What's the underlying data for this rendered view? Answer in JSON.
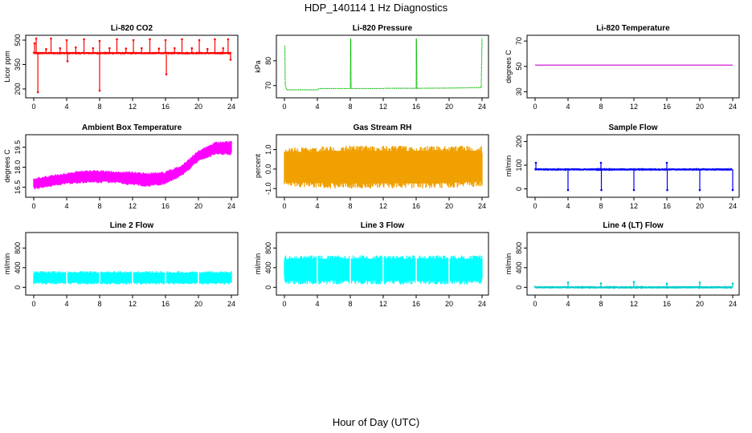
{
  "figure": {
    "title": "HDP_140114  1 Hz Diagnostics",
    "xlabel": "Hour of Day (UTC)"
  },
  "chart_data": [
    {
      "type": "line",
      "title": "Li-820 CO2",
      "ylabel": "Licor ppm",
      "color": "#ff0000",
      "x_ticks": [
        "0",
        "4",
        "8",
        "12",
        "16",
        "20",
        "24"
      ],
      "y_ticks": [
        {
          "v": 200,
          "label": "200"
        },
        {
          "v": 350,
          "label": "350"
        },
        {
          "v": 500,
          "label": "500"
        }
      ],
      "xlim": [
        0,
        24
      ],
      "ylim": [
        175,
        510
      ],
      "base": 420,
      "spikes": [
        [
          0.1,
          480
        ],
        [
          0.3,
          510
        ],
        [
          0.5,
          180
        ],
        [
          1.5,
          445
        ],
        [
          2.1,
          510
        ],
        [
          3.2,
          450
        ],
        [
          4.0,
          500
        ],
        [
          4.1,
          370
        ],
        [
          5.1,
          455
        ],
        [
          6.1,
          505
        ],
        [
          7.2,
          450
        ],
        [
          8.0,
          495
        ],
        [
          8.0,
          190
        ],
        [
          9.2,
          450
        ],
        [
          10.1,
          505
        ],
        [
          11.2,
          448
        ],
        [
          12.1,
          500
        ],
        [
          13.1,
          450
        ],
        [
          14.1,
          505
        ],
        [
          15.2,
          448
        ],
        [
          16.0,
          500
        ],
        [
          16.1,
          290
        ],
        [
          17.1,
          450
        ],
        [
          18.0,
          505
        ],
        [
          19.2,
          450
        ],
        [
          20.1,
          500
        ],
        [
          21.1,
          445
        ],
        [
          22.0,
          505
        ],
        [
          23.0,
          450
        ],
        [
          23.6,
          505
        ],
        [
          23.9,
          380
        ]
      ]
    },
    {
      "type": "line",
      "title": "Li-820 Pressure",
      "ylabel": "kPa",
      "color": "#00bb00",
      "x_ticks": [
        "0",
        "4",
        "8",
        "12",
        "16",
        "20",
        "24"
      ],
      "y_ticks": [
        {
          "v": 70,
          "label": "70"
        },
        {
          "v": 80,
          "label": "80"
        }
      ],
      "xlim": [
        0,
        24
      ],
      "ylim": [
        67,
        89
      ],
      "points": [
        [
          0.05,
          86
        ],
        [
          0.1,
          70
        ],
        [
          0.3,
          68.3
        ],
        [
          4.0,
          68.3
        ],
        [
          4.2,
          68.8
        ],
        [
          8.0,
          68.8
        ],
        [
          8.05,
          89
        ],
        [
          8.1,
          68.8
        ],
        [
          12.0,
          68.8
        ],
        [
          12.2,
          68.9
        ],
        [
          16.0,
          68.9
        ],
        [
          16.02,
          89
        ],
        [
          16.1,
          68.9
        ],
        [
          20.0,
          69.0
        ],
        [
          23.9,
          69.2
        ],
        [
          24.0,
          89
        ]
      ]
    },
    {
      "type": "line",
      "title": "Li-820 Temperature",
      "ylabel": "degrees C",
      "color": "#cc00cc",
      "x_ticks": [
        "0",
        "4",
        "8",
        "12",
        "16",
        "20",
        "24"
      ],
      "y_ticks": [
        {
          "v": 30,
          "label": "30"
        },
        {
          "v": 50,
          "label": "50"
        },
        {
          "v": 70,
          "label": "70"
        }
      ],
      "xlim": [
        0,
        24
      ],
      "ylim": [
        29,
        72
      ],
      "points": [
        [
          0,
          51
        ],
        [
          24,
          51
        ]
      ]
    },
    {
      "type": "area",
      "title": "Ambient Box Temperature",
      "ylabel": "degrees C",
      "color": "#ff00ff",
      "x_ticks": [
        "0",
        "4",
        "8",
        "12",
        "16",
        "20",
        "24"
      ],
      "y_ticks": [
        {
          "v": 16.5,
          "label": "16.5"
        },
        {
          "v": 18.0,
          "label": "18.0"
        },
        {
          "v": 19.5,
          "label": "19.5"
        }
      ],
      "xlim": [
        0,
        24
      ],
      "ylim": [
        16.1,
        20.2
      ],
      "upper": [
        [
          0,
          17.2
        ],
        [
          2,
          17.4
        ],
        [
          4,
          17.6
        ],
        [
          6,
          17.8
        ],
        [
          8,
          17.8
        ],
        [
          10,
          17.7
        ],
        [
          12,
          17.7
        ],
        [
          14,
          17.6
        ],
        [
          16,
          17.7
        ],
        [
          18,
          18.2
        ],
        [
          20,
          19.3
        ],
        [
          22,
          19.9
        ],
        [
          24,
          20.0
        ]
      ],
      "lower": [
        [
          0,
          16.3
        ],
        [
          2,
          16.5
        ],
        [
          4,
          16.7
        ],
        [
          6,
          16.8
        ],
        [
          8,
          16.8
        ],
        [
          10,
          16.8
        ],
        [
          12,
          16.6
        ],
        [
          14,
          16.5
        ],
        [
          16,
          16.7
        ],
        [
          18,
          17.3
        ],
        [
          20,
          18.4
        ],
        [
          22,
          18.9
        ],
        [
          24,
          18.9
        ]
      ]
    },
    {
      "type": "area",
      "title": "Gas Stream RH",
      "ylabel": "percent",
      "color": "#f0a000",
      "x_ticks": [
        "0",
        "4",
        "8",
        "12",
        "16",
        "20",
        "24"
      ],
      "y_ticks": [
        {
          "v": -1.0,
          "label": "-1.0"
        },
        {
          "v": 0.0,
          "label": "0.0"
        },
        {
          "v": 1.0,
          "label": "1.0"
        }
      ],
      "xlim": [
        0,
        24
      ],
      "ylim": [
        -1.2,
        1.6
      ],
      "upper": [
        [
          0,
          1.1
        ],
        [
          6,
          1.2
        ],
        [
          12,
          1.2
        ],
        [
          18,
          1.2
        ],
        [
          24,
          1.2
        ]
      ],
      "lower": [
        [
          0,
          -0.9
        ],
        [
          6,
          -1.0
        ],
        [
          12,
          -1.0
        ],
        [
          18,
          -1.0
        ],
        [
          24,
          -0.9
        ]
      ]
    },
    {
      "type": "line",
      "title": "Sample Flow",
      "ylabel": "ml/min",
      "color": "#0000ff",
      "x_ticks": [
        "0",
        "4",
        "8",
        "12",
        "16",
        "20",
        "24"
      ],
      "y_ticks": [
        {
          "v": 0,
          "label": "0"
        },
        {
          "v": 100,
          "label": "100"
        },
        {
          "v": 200,
          "label": "200"
        }
      ],
      "xlim": [
        0,
        24
      ],
      "ylim": [
        -15,
        215
      ],
      "base": 82,
      "spikes": [
        [
          0.1,
          110
        ],
        [
          4.0,
          -5
        ],
        [
          8.0,
          110
        ],
        [
          8.05,
          -5
        ],
        [
          12.0,
          -5
        ],
        [
          16.0,
          110
        ],
        [
          16.05,
          -5
        ],
        [
          20.0,
          -5
        ],
        [
          24.0,
          -5
        ]
      ]
    },
    {
      "type": "area",
      "title": "Line 2 Flow",
      "ylabel": "ml/min",
      "color": "#00ffff",
      "x_ticks": [
        "0",
        "4",
        "8",
        "12",
        "16",
        "20",
        "24"
      ],
      "y_ticks": [
        {
          "v": 0,
          "label": "0"
        },
        {
          "v": 400,
          "label": "400"
        },
        {
          "v": 800,
          "label": "800"
        }
      ],
      "xlim": [
        0,
        24
      ],
      "ylim": [
        -60,
        1050
      ],
      "upper": [
        [
          0,
          330
        ],
        [
          24,
          330
        ]
      ],
      "lower": [
        [
          0,
          60
        ],
        [
          24,
          60
        ]
      ],
      "gaps": [
        4,
        8,
        12,
        16,
        20
      ]
    },
    {
      "type": "area",
      "title": "Line 3 Flow",
      "ylabel": "ml/min",
      "color": "#00ffff",
      "x_ticks": [
        "0",
        "4",
        "8",
        "12",
        "16",
        "20",
        "24"
      ],
      "y_ticks": [
        {
          "v": 0,
          "label": "0"
        },
        {
          "v": 400,
          "label": "400"
        },
        {
          "v": 800,
          "label": "800"
        }
      ],
      "xlim": [
        0,
        24
      ],
      "ylim": [
        -60,
        1050
      ],
      "upper": [
        [
          0,
          650
        ],
        [
          24,
          650
        ]
      ],
      "lower": [
        [
          0,
          60
        ],
        [
          24,
          60
        ]
      ],
      "gaps": [
        4,
        8,
        12,
        16,
        20
      ]
    },
    {
      "type": "line",
      "title": "Line 4 (LT) Flow",
      "ylabel": "ml/min",
      "color": "#00cccc",
      "x_ticks": [
        "0",
        "4",
        "8",
        "12",
        "16",
        "20",
        "24"
      ],
      "y_ticks": [
        {
          "v": 0,
          "label": "0"
        },
        {
          "v": 400,
          "label": "400"
        },
        {
          "v": 800,
          "label": "800"
        }
      ],
      "xlim": [
        0,
        24
      ],
      "ylim": [
        -60,
        1050
      ],
      "base": 0,
      "spikes": [
        [
          4.0,
          100
        ],
        [
          8.0,
          80
        ],
        [
          12.0,
          110
        ],
        [
          16.0,
          75
        ],
        [
          20.0,
          100
        ],
        [
          24.0,
          75
        ]
      ]
    }
  ]
}
